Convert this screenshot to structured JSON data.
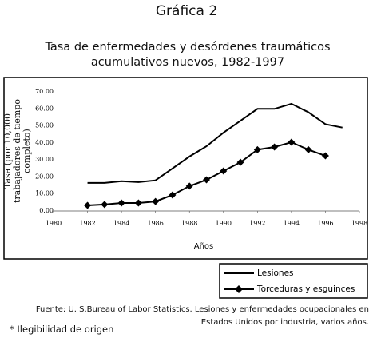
{
  "heading": "Gráfica 2",
  "chart_data": {
    "type": "line",
    "title": "Tasa de enfermedades y desórdenes traumáticos acumulativos nuevos, 1982-1997",
    "y_label": "Tasa (por 10,000 trabajadores de tiempo completo)",
    "x_label": "Años",
    "x": [
      1982,
      1983,
      1984,
      1985,
      1986,
      1987,
      1988,
      1989,
      1990,
      1991,
      1992,
      1993,
      1994,
      1995,
      1996,
      1997
    ],
    "series": [
      {
        "name": "Lesiones",
        "color": "#000000",
        "marker": "none",
        "values": [
          16.5,
          16.5,
          17.5,
          17,
          18,
          25,
          32,
          38,
          46,
          53,
          60,
          60,
          63,
          58,
          51,
          49
        ]
      },
      {
        "name": "Torceduras y esguinces",
        "color": "#000000",
        "marker": "diamond",
        "values": [
          3.3,
          3.8,
          4.7,
          4.7,
          5.6,
          9.4,
          14.6,
          18.3,
          23.5,
          28.6,
          36,
          37.6,
          40.4,
          36,
          32.4,
          null
        ]
      }
    ],
    "xlim": [
      1980,
      1998
    ],
    "xticks": [
      1980,
      1982,
      1984,
      1986,
      1988,
      1990,
      1992,
      1994,
      1996,
      1998
    ],
    "ylim": [
      0,
      70
    ],
    "yticks": [
      {
        "value": 0,
        "label": "0.00"
      },
      {
        "value": 10,
        "label": "10.00"
      },
      {
        "value": 20,
        "label": "20.00"
      },
      {
        "value": 30,
        "label": "30.00"
      },
      {
        "value": 40,
        "label": "40.00"
      },
      {
        "value": 50,
        "label": "50.00"
      },
      {
        "value": 60,
        "label": "60.00"
      },
      {
        "value": 70,
        "label": "70.00"
      }
    ],
    "legend": "bottom-right"
  },
  "source": "Fuente: U. S.Bureau of Labor Statistics. Lesiones y enfermedades ocupacionales en Estados Unidos por industria, varios años.",
  "note": "* Ilegibilidad de origen"
}
